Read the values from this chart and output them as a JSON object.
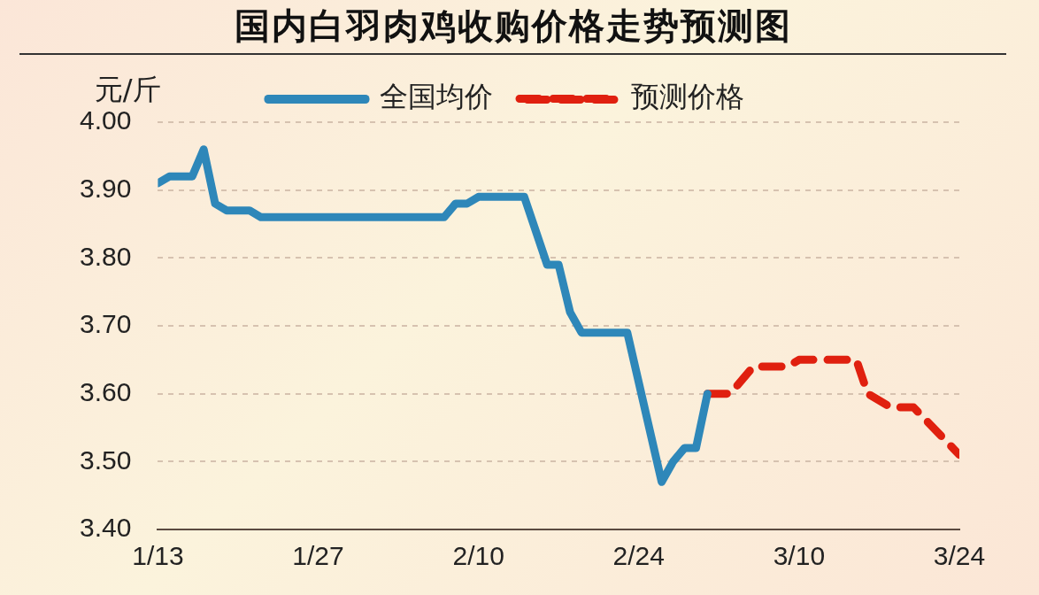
{
  "chart_data": {
    "type": "line",
    "title": "国内白羽肉鸡收购价格走势预测图",
    "ylabel": "元/斤",
    "xlim": [
      "--01-13",
      "--03-24"
    ],
    "xticks": [
      {
        "value": "--01-13",
        "label": "1/13"
      },
      {
        "value": "--01-27",
        "label": "1/27"
      },
      {
        "value": "--02-10",
        "label": "2/10"
      },
      {
        "value": "--02-24",
        "label": "2/24"
      },
      {
        "value": "--03-10",
        "label": "3/10"
      },
      {
        "value": "--03-24",
        "label": "3/24"
      }
    ],
    "ylim": [
      3.4,
      4.0
    ],
    "yticks": [
      {
        "value": 3.4,
        "label": "3.40"
      },
      {
        "value": 3.5,
        "label": "3.50"
      },
      {
        "value": 3.6,
        "label": "3.60"
      },
      {
        "value": 3.7,
        "label": "3.70"
      },
      {
        "value": 3.8,
        "label": "3.80"
      },
      {
        "value": 3.9,
        "label": "3.90"
      },
      {
        "value": 4.0,
        "label": "4.00"
      }
    ],
    "grid": "y",
    "legend": "top",
    "marker": "none",
    "series": [
      {
        "name": "全国均价",
        "color": "#2e87b9",
        "line_style": "solid",
        "x": [
          "--01-13",
          "--01-14",
          "--01-16",
          "--01-17",
          "--01-18",
          "--01-19",
          "--01-21",
          "--01-22",
          "--02-07",
          "--02-08",
          "--02-09",
          "--02-10",
          "--02-14",
          "--02-16",
          "--02-17",
          "--02-18",
          "--02-19",
          "--02-23",
          "--02-26",
          "--02-27",
          "--02-28",
          "--03-01",
          "--03-02"
        ],
        "values": [
          3.91,
          3.92,
          3.92,
          3.96,
          3.88,
          3.87,
          3.87,
          3.86,
          3.86,
          3.88,
          3.88,
          3.89,
          3.89,
          3.79,
          3.79,
          3.72,
          3.69,
          3.69,
          3.47,
          3.5,
          3.52,
          3.52,
          3.6
        ]
      },
      {
        "name": "预测价格",
        "color": "#e0200f",
        "line_style": "dashed",
        "x": [
          "--03-02",
          "--03-04",
          "--03-06",
          "--03-09",
          "--03-10",
          "--03-15",
          "--03-16",
          "--03-18",
          "--03-20",
          "--03-24"
        ],
        "values": [
          3.6,
          3.6,
          3.64,
          3.64,
          3.65,
          3.65,
          3.6,
          3.58,
          3.58,
          3.51
        ]
      }
    ]
  }
}
